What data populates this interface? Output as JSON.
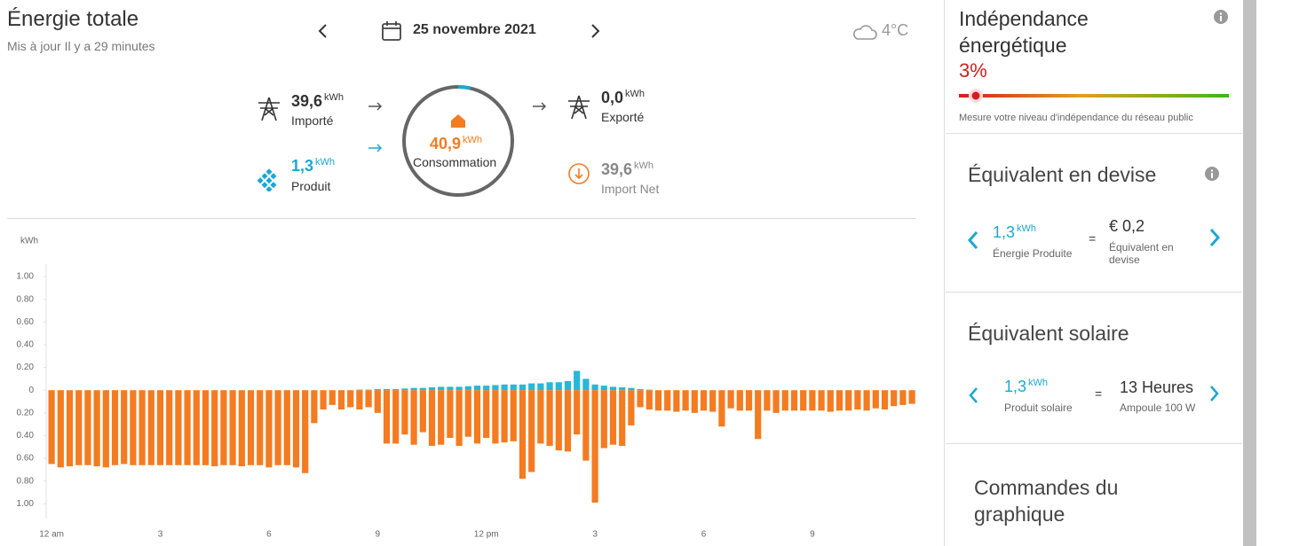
{
  "header": {
    "title": "Énergie totale",
    "subtitle": "Mis à jour Il y a 29 minutes",
    "date": "25 novembre 2021",
    "weather": "4°C"
  },
  "unit": "kWh",
  "flow": {
    "imported": {
      "value": "39,6",
      "label": "Importé"
    },
    "produced": {
      "value": "1,3",
      "label": "Produit"
    },
    "consumption": {
      "value": "40,9",
      "label": "Consommation"
    },
    "exported": {
      "value": "0,0",
      "label": "Exporté"
    },
    "net_import": {
      "value": "39,6",
      "label": "Import Net"
    }
  },
  "sidebar": {
    "independence": {
      "title": "Indépendance énergétique",
      "value": "3%",
      "caption": "Mesure votre niveau d'indépendance du réseau public"
    },
    "currency": {
      "title": "Équivalent en devise",
      "produced": "1,3",
      "produced_label": "Énergie Produite",
      "equals": "=",
      "amount": "€ 0,2",
      "amount_label": "Équivalent en devise"
    },
    "solar": {
      "title": "Équivalent solaire",
      "produced": "1,3",
      "produced_label": "Produit solaire",
      "equals": "=",
      "amount": "13 Heures",
      "amount_label": "Ampoule 100 W"
    },
    "controls": {
      "title": "Commandes du graphique"
    }
  },
  "chart_data": {
    "type": "bar",
    "y_label": "kWh",
    "categories": [
      "12 am",
      null,
      null,
      null,
      null,
      null,
      null,
      null,
      null,
      null,
      null,
      null,
      "3",
      null,
      null,
      null,
      null,
      null,
      null,
      null,
      null,
      null,
      null,
      null,
      "6",
      null,
      null,
      null,
      null,
      null,
      null,
      null,
      null,
      null,
      null,
      null,
      "9",
      null,
      null,
      null,
      null,
      null,
      null,
      null,
      null,
      null,
      null,
      null,
      "12 pm",
      null,
      null,
      null,
      null,
      null,
      null,
      null,
      null,
      null,
      null,
      null,
      "3",
      null,
      null,
      null,
      null,
      null,
      null,
      null,
      null,
      null,
      null,
      null,
      "6",
      null,
      null,
      null,
      null,
      null,
      null,
      null,
      null,
      null,
      null,
      null,
      "9",
      null,
      null,
      null,
      null,
      null,
      null,
      null,
      null,
      null,
      null,
      null
    ],
    "series": [
      {
        "color": "#29b6d8",
        "values": [
          0,
          0,
          0,
          0,
          0,
          0,
          0,
          0,
          0,
          0,
          0,
          0,
          0,
          0,
          0,
          0,
          0,
          0,
          0,
          0,
          0,
          0,
          0,
          0,
          0,
          0,
          0,
          0,
          0,
          0,
          0,
          0,
          0,
          0,
          0.005,
          0.005,
          0.01,
          0.01,
          0.01,
          0.015,
          0.02,
          0.02,
          0.025,
          0.03,
          0.03,
          0.03,
          0.035,
          0.04,
          0.04,
          0.045,
          0.05,
          0.05,
          0.05,
          0.06,
          0.06,
          0.07,
          0.07,
          0.08,
          0.17,
          0.1,
          0.05,
          0.04,
          0.03,
          0.025,
          0.02,
          0.01,
          0.005,
          0,
          0,
          0,
          0,
          0,
          0,
          0,
          0,
          0,
          0,
          0,
          0,
          0,
          0,
          0,
          0,
          0,
          0,
          0,
          0,
          0,
          0,
          0,
          0,
          0,
          0,
          0,
          0,
          0
        ]
      },
      {
        "color": "#f47b20",
        "values": [
          -0.65,
          -0.68,
          -0.67,
          -0.66,
          -0.66,
          -0.67,
          -0.68,
          -0.66,
          -0.65,
          -0.66,
          -0.66,
          -0.66,
          -0.66,
          -0.66,
          -0.66,
          -0.66,
          -0.66,
          -0.66,
          -0.67,
          -0.66,
          -0.66,
          -0.67,
          -0.66,
          -0.66,
          -0.68,
          -0.66,
          -0.66,
          -0.68,
          -0.73,
          -0.29,
          -0.17,
          -0.13,
          -0.17,
          -0.15,
          -0.17,
          -0.15,
          -0.2,
          -0.47,
          -0.47,
          -0.39,
          -0.48,
          -0.37,
          -0.49,
          -0.48,
          -0.42,
          -0.49,
          -0.41,
          -0.47,
          -0.42,
          -0.47,
          -0.46,
          -0.45,
          -0.78,
          -0.72,
          -0.47,
          -0.49,
          -0.53,
          -0.54,
          -0.39,
          -0.62,
          -0.99,
          -0.51,
          -0.48,
          -0.49,
          -0.31,
          -0.15,
          -0.17,
          -0.18,
          -0.18,
          -0.19,
          -0.18,
          -0.2,
          -0.18,
          -0.19,
          -0.32,
          -0.16,
          -0.18,
          -0.18,
          -0.43,
          -0.18,
          -0.2,
          -0.18,
          -0.18,
          -0.18,
          -0.18,
          -0.18,
          -0.19,
          -0.18,
          -0.18,
          -0.17,
          -0.18,
          -0.16,
          -0.17,
          -0.14,
          -0.13,
          -0.12
        ]
      }
    ],
    "ylim": [
      -1.13,
      1.11
    ],
    "yticks": [
      {
        "value": 1,
        "label": "1.00"
      },
      {
        "value": 0.8,
        "label": "0.80"
      },
      {
        "value": 0.6,
        "label": "0.60"
      },
      {
        "value": 0.4,
        "label": "0.40"
      },
      {
        "value": 0.2,
        "label": "0.20"
      },
      0,
      {
        "value": -0.2,
        "label": "0.20"
      },
      {
        "value": -0.4,
        "label": "0.40"
      },
      {
        "value": -0.6,
        "label": "0.60"
      },
      {
        "value": -0.8,
        "label": "0.80"
      },
      {
        "value": -1,
        "label": "1.00"
      }
    ]
  }
}
